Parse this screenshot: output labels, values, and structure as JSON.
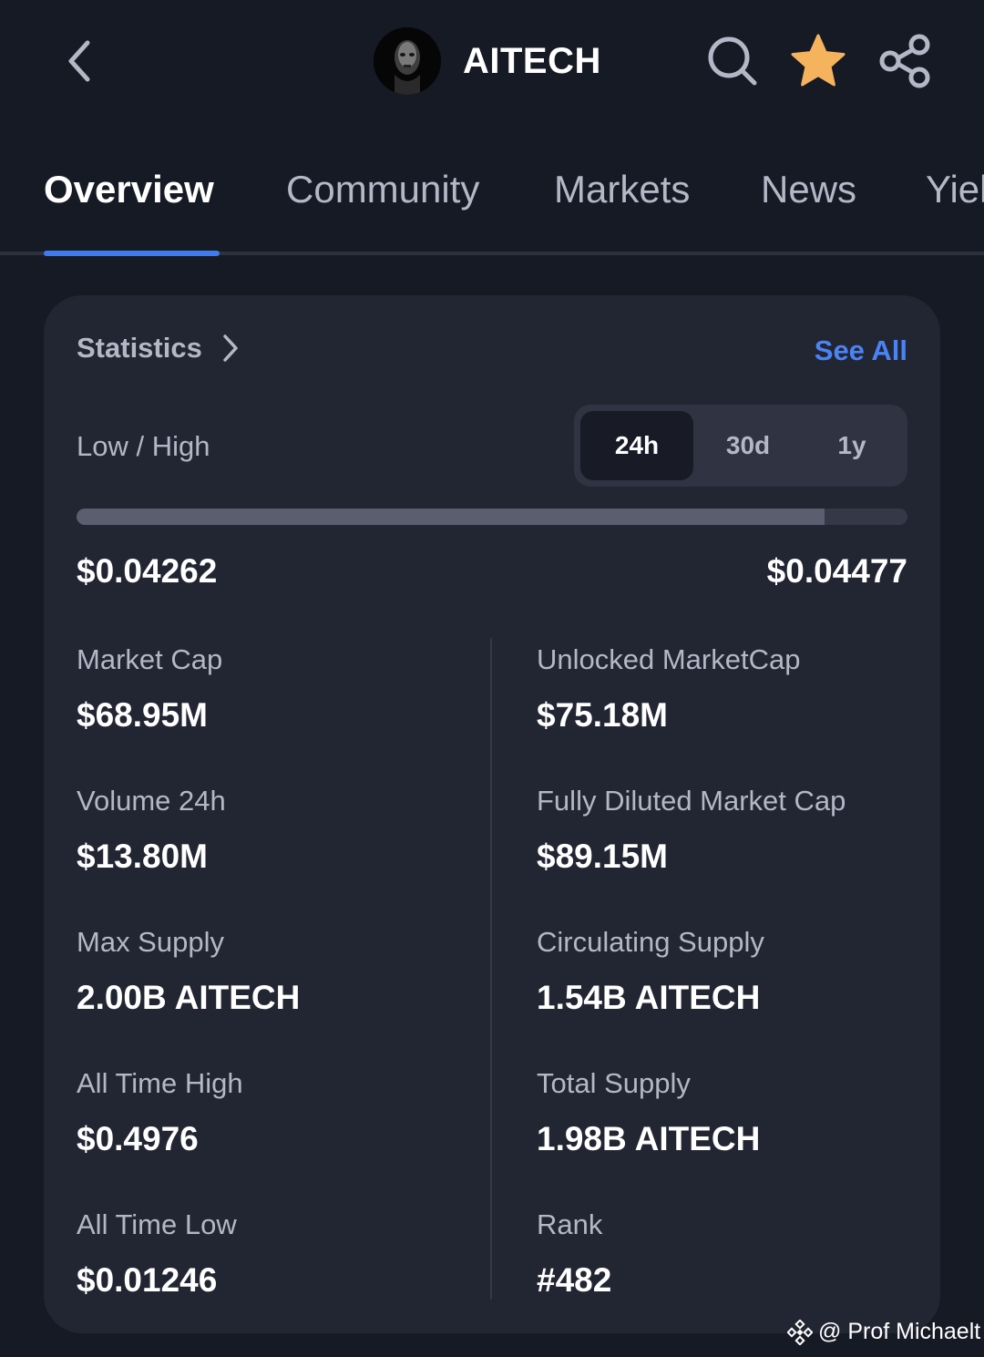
{
  "header": {
    "title": "AITECH",
    "back_icon": "chevron-left-icon",
    "search_icon": "search-icon",
    "favorite_icon": "star-icon",
    "share_icon": "share-icon",
    "favorite_color": "#f6b35d"
  },
  "tabs": [
    {
      "label": "Overview",
      "active": true
    },
    {
      "label": "Community",
      "active": false
    },
    {
      "label": "Markets",
      "active": false
    },
    {
      "label": "News",
      "active": false
    },
    {
      "label": "Yiel",
      "active": false
    }
  ],
  "statistics": {
    "title": "Statistics",
    "see_all": "See All",
    "low_high_label": "Low / High",
    "periods": [
      {
        "label": "24h",
        "active": true
      },
      {
        "label": "30d",
        "active": false
      },
      {
        "label": "1y",
        "active": false
      }
    ],
    "range_position_fraction": 0.9,
    "low": "$0.04262",
    "high": "$0.04477",
    "items": [
      {
        "label": "Market Cap",
        "value": "$68.95M"
      },
      {
        "label": "Unlocked MarketCap",
        "value": "$75.18M"
      },
      {
        "label": "Volume 24h",
        "value": "$13.80M"
      },
      {
        "label": "Fully Diluted Market Cap",
        "value": "$89.15M"
      },
      {
        "label": "Max Supply",
        "value": "2.00B AITECH"
      },
      {
        "label": "Circulating Supply",
        "value": "1.54B AITECH"
      },
      {
        "label": "All Time High",
        "value": "$0.4976"
      },
      {
        "label": "Total Supply",
        "value": "1.98B AITECH"
      },
      {
        "label": "All Time Low",
        "value": "$0.01246"
      },
      {
        "label": "Rank",
        "value": "#482"
      }
    ]
  },
  "watermark": {
    "text": "@ Prof Michaelt"
  },
  "colors": {
    "background": "#161a25",
    "card": "#222532",
    "accent": "#3d7bf4",
    "link": "#4a83f6"
  }
}
